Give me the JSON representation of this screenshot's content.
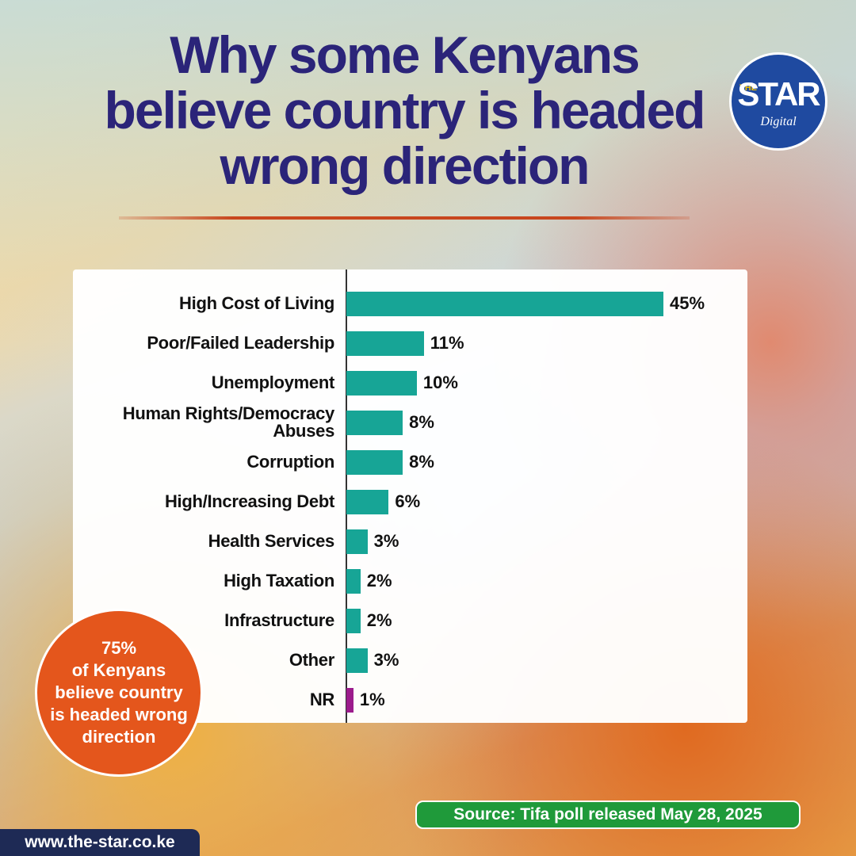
{
  "chart_data": {
    "type": "bar",
    "title": [
      "Why some Kenyans",
      "believe country is headed",
      "wrong direction"
    ],
    "categories": [
      "High Cost of Living",
      "Poor/Failed Leadership",
      "Unemployment",
      "Human Rights/Democracy Abuses",
      "Corruption",
      "High/Increasing Debt",
      "Health Services",
      "High Taxation",
      "Infrastructure",
      "Other",
      "NR"
    ],
    "values": [
      45,
      11,
      10,
      8,
      8,
      6,
      3,
      2,
      2,
      3,
      1
    ],
    "value_labels": [
      "45%",
      "11%",
      "10%",
      "8%",
      "8%",
      "6%",
      "3%",
      "2%",
      "2%",
      "3%",
      "1%"
    ],
    "colors": [
      "#17a596",
      "#17a596",
      "#17a596",
      "#17a596",
      "#17a596",
      "#17a596",
      "#17a596",
      "#17a596",
      "#17a596",
      "#17a596",
      "#9c1c8c"
    ],
    "callout": [
      "75%",
      "of Kenyans",
      "believe country",
      "is headed wrong",
      "direction"
    ],
    "source": "Source: Tifa poll released May 28, 2025",
    "website": "www.the-star.co.ke",
    "logo": {
      "top": "THE",
      "main": "STAR",
      "sub": "Digital"
    }
  }
}
